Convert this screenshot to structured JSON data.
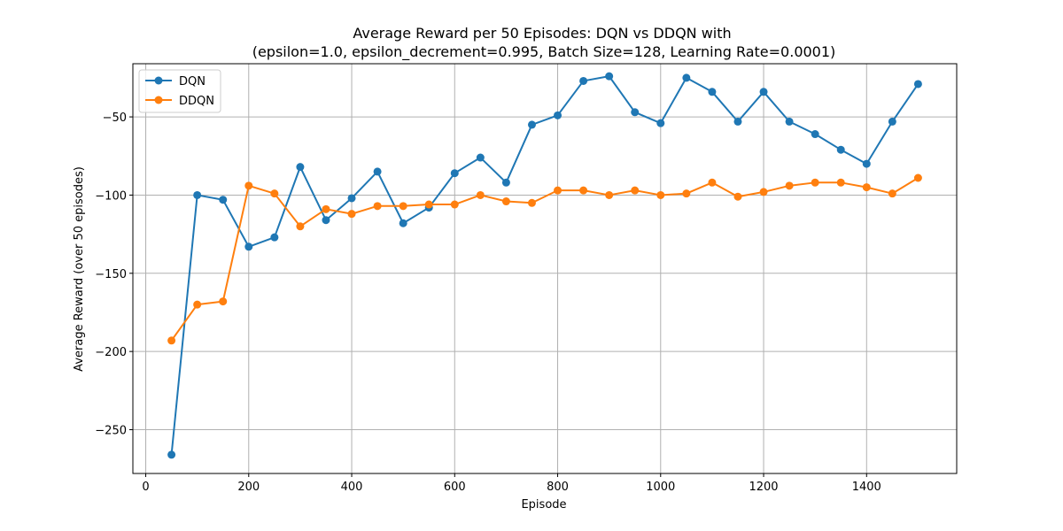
{
  "chart_data": {
    "type": "line",
    "title": "Average Reward per 50 Episodes: DQN vs DDQN with",
    "subtitle": "(epsilon=1.0, epsilon_decrement=0.995, Batch Size=128, Learning Rate=0.0001)",
    "xlabel": "Episode",
    "ylabel": "Average Reward (over 50 episodes)",
    "xlim": [
      -25,
      1575
    ],
    "ylim": [
      -278,
      -16
    ],
    "xticks": [
      0,
      200,
      400,
      600,
      800,
      1000,
      1200,
      1400
    ],
    "yticks": [
      -250,
      -200,
      -150,
      -100,
      -50
    ],
    "grid": true,
    "legend_position": "top-left",
    "x": [
      50,
      100,
      150,
      200,
      250,
      300,
      350,
      400,
      450,
      500,
      550,
      600,
      650,
      700,
      750,
      800,
      850,
      900,
      950,
      1000,
      1050,
      1100,
      1150,
      1200,
      1250,
      1300,
      1350,
      1400,
      1450,
      1500
    ],
    "series": [
      {
        "name": "DQN",
        "color": "#1f77b4",
        "values": [
          -266,
          -100,
          -103,
          -133,
          -127,
          -82,
          -116,
          -102,
          -85,
          -118,
          -108,
          -86,
          -76,
          -92,
          -55,
          -49,
          -27,
          -24,
          -47,
          -54,
          -25,
          -34,
          -53,
          -34,
          -53,
          -61,
          -71,
          -80,
          -53,
          -29
        ]
      },
      {
        "name": "DDQN",
        "color": "#ff7f0e",
        "values": [
          -193,
          -170,
          -168,
          -94,
          -99,
          -120,
          -109,
          -112,
          -107,
          -107,
          -106,
          -106,
          -100,
          -104,
          -105,
          -97,
          -97,
          -100,
          -97,
          -100,
          -99,
          -92,
          -101,
          -98,
          -94,
          -92,
          -92,
          -95,
          -99,
          -89
        ]
      }
    ]
  }
}
